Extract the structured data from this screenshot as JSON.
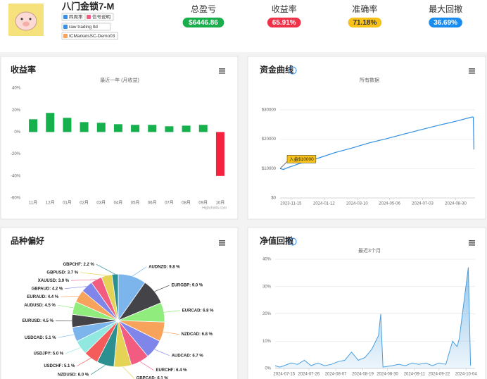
{
  "profile": {
    "name": "八门金锁7-M",
    "tags": [
      "四周率",
      "信号说明",
      "raw trading ltd",
      "ICMarketsSC-Demo03"
    ],
    "stats": [
      {
        "label": "总盈亏",
        "value": "$6446.86",
        "color": "#1aad4b",
        "text_color": "#ffffff"
      },
      {
        "label": "收益率",
        "value": "65.91%",
        "color": "#f0314a",
        "text_color": "#ffffff"
      },
      {
        "label": "准确率",
        "value": "71.18%",
        "color": "#f8c21a",
        "text_color": "#333333"
      },
      {
        "label": "最大回撤",
        "value": "36.69%",
        "color": "#1a8cf0",
        "text_color": "#ffffff"
      }
    ]
  },
  "chart_data": [
    {
      "type": "bar",
      "title": "收益率",
      "subtitle": "最近一年 (月收益)",
      "credit": "Highcharts.com",
      "categories": [
        "11月",
        "12月",
        "01月",
        "02月",
        "03月",
        "04月",
        "05月",
        "06月",
        "07月",
        "08月",
        "09月",
        "10月"
      ],
      "values": [
        11.6,
        17.4,
        12.9,
        9,
        8.4,
        7.1,
        6.5,
        6.5,
        5.2,
        5.8,
        6.5,
        -40
      ],
      "color": "#16b14c",
      "negative_color": "#f5213f",
      "grid": false,
      "ylim": [
        -60,
        40
      ],
      "yticks": [
        {
          "value": -60,
          "label": "-60%"
        },
        {
          "value": -40,
          "label": "-40%"
        },
        {
          "value": -20,
          "label": "-20%"
        },
        {
          "value": 0,
          "label": "0%"
        },
        {
          "value": 20,
          "label": "20%"
        },
        {
          "value": 40,
          "label": "40%"
        }
      ]
    },
    {
      "type": "line",
      "title": "资金曲线",
      "subtitle": "所有数据",
      "color": "#2f8ee5",
      "grid": true,
      "annotation": {
        "text": "入金$10000",
        "color": "#f8c21a"
      },
      "x": [
        "2023-10-27",
        "2023-11-02",
        "2023-11-10",
        "2023-11-20",
        "2023-12-01",
        "2024-01-01",
        "2024-02-01",
        "2024-03-01",
        "2024-04-01",
        "2024-05-01",
        "2024-06-01",
        "2024-07-01",
        "2024-08-01",
        "2024-09-01",
        "2024-09-28",
        "2024-09-30",
        "2024-10-01"
      ],
      "values": [
        10000,
        9700,
        10400,
        11000,
        11800,
        13500,
        15500,
        17000,
        18800,
        20200,
        21800,
        23300,
        24800,
        26200,
        27600,
        27500,
        16500
      ],
      "xlim": [
        "2023-10-27",
        "2024-10-03"
      ],
      "xticks": [
        "2023-11-15",
        "2024-01-12",
        "2024-03-10",
        "2024-05-06",
        "2024-07-03",
        "2024-08-30"
      ],
      "ylim": [
        0,
        30000
      ],
      "yticks": [
        {
          "value": 0,
          "label": "$0"
        },
        {
          "value": 10000,
          "label": "$10000"
        },
        {
          "value": 20000,
          "label": "$20000"
        },
        {
          "value": 30000,
          "label": "$30000"
        }
      ]
    },
    {
      "type": "pie",
      "title": "品种偏好",
      "values": [
        9.8,
        9.0,
        6.8,
        6.8,
        6.7,
        6.4,
        6.1,
        6.0,
        5.1,
        5.0,
        5.1,
        4.5,
        4.5,
        4.4,
        4.2,
        3.9,
        3.7,
        2.2
      ],
      "value_labels": [
        "AUDNZD: 9.8 %",
        "EURGBP: 9.0 %",
        "EURCAD: 6.8 %",
        "NZDCAD: 6.8 %",
        "AUDCAD: 6.7 %",
        "EURCHF: 6.4 %",
        "GBPCAD: 6.1 %",
        "NZDUSD: 6.0 %",
        "USDCHF: 5.1 %",
        "USDJPY: 5.0 %",
        "USDCAD: 5.1 %",
        "EURUSD: 4.5 %",
        "AUDUSD: 4.5 %",
        "EURAUD: 4.4 %",
        "GBPAUD: 4.2 %",
        "XAUUSD: 3.9 %",
        "GBPUSD: 3.7 %",
        "GBPCHF: 2.2 %"
      ],
      "colors": [
        "#7cb5ec",
        "#434348",
        "#90ed7d",
        "#f7a35c",
        "#8085e9",
        "#f15c80",
        "#e4d354",
        "#2b908f",
        "#f45b5b",
        "#91e8e1"
      ]
    },
    {
      "type": "area",
      "title": "净值回撤",
      "subtitle": "最近3个月",
      "color": "#4a9fe0",
      "grid": true,
      "x": [
        "2024-07-11",
        "2024-07-13",
        "2024-07-15",
        "2024-07-18",
        "2024-07-21",
        "2024-07-24",
        "2024-07-27",
        "2024-07-30",
        "2024-08-02",
        "2024-08-05",
        "2024-08-08",
        "2024-08-11",
        "2024-08-14",
        "2024-08-17",
        "2024-08-20",
        "2024-08-23",
        "2024-08-26",
        "2024-08-27",
        "2024-08-28",
        "2024-09-01",
        "2024-09-04",
        "2024-09-07",
        "2024-09-10",
        "2024-09-13",
        "2024-09-16",
        "2024-09-19",
        "2024-09-22",
        "2024-09-25",
        "2024-09-28",
        "2024-09-30",
        "2024-10-01",
        "2024-10-03",
        "2024-10-05",
        "2024-10-06"
      ],
      "values": [
        1,
        0.5,
        1,
        2,
        1.5,
        3,
        1,
        2,
        1,
        1.5,
        2.5,
        3,
        6,
        3,
        4,
        7,
        12,
        20,
        0.5,
        1,
        1.5,
        1,
        2,
        1.5,
        2,
        1,
        2,
        1.5,
        10,
        8,
        11,
        24,
        37,
        1
      ],
      "xlim": [
        "2024-07-11",
        "2024-10-08"
      ],
      "xticks": [
        "2024-07-15",
        "2024-07-26",
        "2024-08-07",
        "2024-08-19",
        "2024-08-30",
        "2024-09-11",
        "2024-09-22",
        "2024-10-04"
      ],
      "ylim": [
        0,
        40
      ],
      "yticks": [
        {
          "value": 0,
          "label": "0%"
        },
        {
          "value": 10,
          "label": "10%"
        },
        {
          "value": 20,
          "label": "20%"
        },
        {
          "value": 30,
          "label": "30%"
        },
        {
          "value": 40,
          "label": "40%"
        }
      ]
    }
  ]
}
